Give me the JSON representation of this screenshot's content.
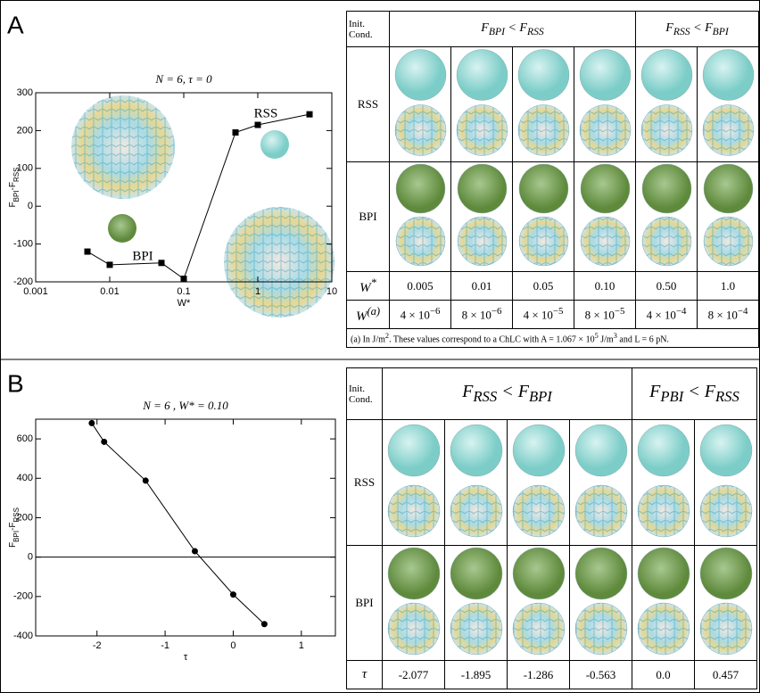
{
  "panels": [
    "A",
    "B"
  ],
  "chart_data": [
    {
      "type": "line",
      "title": "N = 6, τ = 0",
      "xlabel": "W*",
      "ylabel": [
        "F",
        "BPI",
        "-F",
        "RSS"
      ],
      "xscale": "log",
      "xlim": [
        0.001,
        10
      ],
      "xticks": [
        0.001,
        0.01,
        0.1,
        1,
        10
      ],
      "ylim": [
        -200,
        300
      ],
      "yticks": [
        -200,
        -100,
        0,
        100,
        200,
        300
      ],
      "x": [
        0.005,
        0.01,
        0.05,
        0.1,
        0.5,
        1,
        5
      ],
      "values": [
        -120,
        -155,
        -150,
        -192,
        195,
        215,
        243
      ],
      "color": "#000000",
      "marker": "square",
      "annotations": [
        "RSS",
        "BPI"
      ]
    },
    {
      "type": "line",
      "title": "N = 6 , W* = 0.10",
      "xlabel": "τ",
      "ylabel": [
        "F",
        "BPI",
        "-F",
        "RSS"
      ],
      "xlim": [
        -2.9,
        1.5
      ],
      "xticks": [
        -2,
        -1,
        0,
        1
      ],
      "ylim": [
        -400,
        700
      ],
      "yticks": [
        -400,
        -200,
        0,
        200,
        400,
        600
      ],
      "x": [
        -2.077,
        -1.895,
        -1.286,
        -0.563,
        0,
        0.457
      ],
      "values": [
        680,
        585,
        388,
        30,
        -190,
        -340
      ],
      "color": "#000000",
      "marker": "circle",
      "zero_line": true
    }
  ],
  "tables": [
    {
      "corner": "Init. Cond.",
      "groups": [
        [
          "F",
          "BPI",
          " < F",
          "RSS"
        ],
        [
          "F",
          "RSS",
          " < F",
          "BPI"
        ]
      ],
      "row_labels": [
        "RSS",
        "BPI"
      ],
      "param_rows": [
        {
          "label": [
            "W",
            "*"
          ],
          "cells": [
            "0.005",
            "0.01",
            "0.05",
            "0.10",
            "0.50",
            "1.0"
          ]
        },
        {
          "label": [
            "W",
            "(a)"
          ],
          "cells": [
            [
              "4 × 10",
              "−6"
            ],
            [
              "8 × 10",
              "−6"
            ],
            [
              "4 × 10",
              "−5"
            ],
            [
              "8 × 10",
              "−5"
            ],
            [
              "4 × 10",
              "−4"
            ],
            [
              "8 × 10",
              "−4"
            ]
          ]
        }
      ],
      "footnote": [
        "(a) In J/m",
        "2",
        ". These values correspond to a ChLC with A = 1.067 × 10",
        "5",
        " J/m",
        "3",
        " and L = 6 pN."
      ]
    },
    {
      "corner": "Init. Cond.",
      "groups": [
        [
          "F",
          "RSS",
          " < F",
          "BPI"
        ],
        [
          "F",
          "PBI",
          " < F",
          "RSS"
        ]
      ],
      "row_labels": [
        "RSS",
        "BPI"
      ],
      "param_rows": [
        {
          "label": [
            "τ"
          ],
          "cells": [
            "-2.077",
            "-1.895",
            "-1.286",
            "-0.563",
            "0.0",
            "0.457"
          ]
        }
      ]
    }
  ]
}
